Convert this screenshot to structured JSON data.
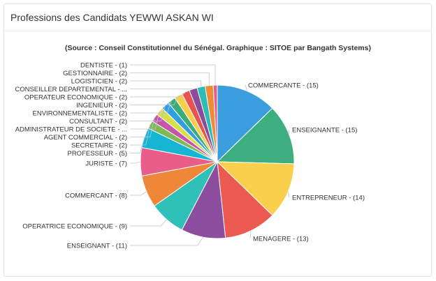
{
  "card": {
    "title": "Professions des Candidats YEWWI ASKAN WI"
  },
  "chart_data": {
    "type": "pie",
    "title": "",
    "subtitle": "(Source : Conseil Constitutionnel du Sénégal. Graphique : SITOE par Bangath Systems)",
    "slices": [
      {
        "label": "COMMERCANTE - (15)",
        "value": 15,
        "color": "#3a9ede"
      },
      {
        "label": "ENSEIGNANTE - (15)",
        "value": 15,
        "color": "#3dae7d"
      },
      {
        "label": "ENTREPRENEUR - (14)",
        "value": 14,
        "color": "#f9cf4b"
      },
      {
        "label": "MENAGERE - (13)",
        "value": 13,
        "color": "#eb5a50"
      },
      {
        "label": "ENSEIGNANT - (11)",
        "value": 11,
        "color": "#8c4e9e"
      },
      {
        "label": "OPERATRICE ECONOMIQUE - (9)",
        "value": 9,
        "color": "#2fc0b8"
      },
      {
        "label": "COMMERCANT - (8)",
        "value": 8,
        "color": "#ef8638"
      },
      {
        "label": "JURISTE - (7)",
        "value": 7,
        "color": "#e95d8a"
      },
      {
        "label": "PROFESSEUR - (5)",
        "value": 5,
        "color": "#16b5d3"
      },
      {
        "label": "SECRETAIRE - (2)",
        "value": 2,
        "color": "#7fbb55"
      },
      {
        "label": "AGENT COMMERCIAL - (2)",
        "value": 2,
        "color": "#c654a8"
      },
      {
        "label": "ADMINISTRATEUR DE SOCIETE - ...",
        "value": 2,
        "color": "#d7df4d"
      },
      {
        "label": "CONSULTANT - (2)",
        "value": 2,
        "color": "#2f9fe0"
      },
      {
        "label": "ENVIRONNEMENTALISTE - (2)",
        "value": 2,
        "color": "#3bad7a"
      },
      {
        "label": "INGENIEUR - (2)",
        "value": 2,
        "color": "#f8cf48"
      },
      {
        "label": "OPERATEUR ECONOMIQUE - (2)",
        "value": 2,
        "color": "#e8534f"
      },
      {
        "label": "CONSEILLER DEPARTEMENTAL - ...",
        "value": 2,
        "color": "#8a4d9c"
      },
      {
        "label": "LOGISTICIEN - (2)",
        "value": 2,
        "color": "#2cbdb7"
      },
      {
        "label": "GESTIONNAIRE - (2)",
        "value": 2,
        "color": "#ef8a37"
      },
      {
        "label": "DENTISTE - (1)",
        "value": 1,
        "color": "#e95d8a"
      }
    ],
    "legend": "none"
  }
}
